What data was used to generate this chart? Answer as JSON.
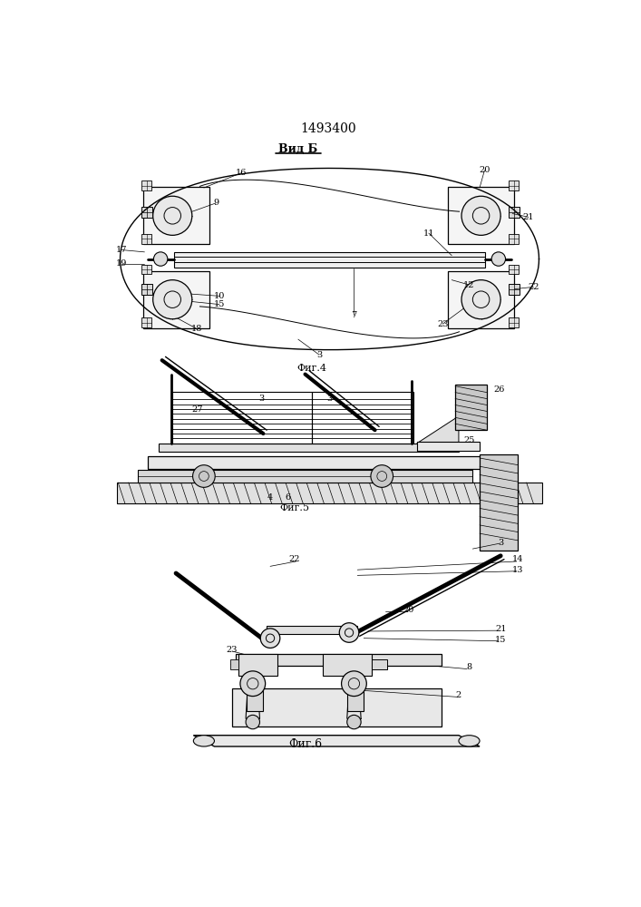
{
  "title": "1493400",
  "vid_label": "Вид Б",
  "fig4_label": "Фиг.4",
  "fig5_label": "Фиг.5",
  "fig6_label": "Фиг.6",
  "bg_color": "#ffffff"
}
